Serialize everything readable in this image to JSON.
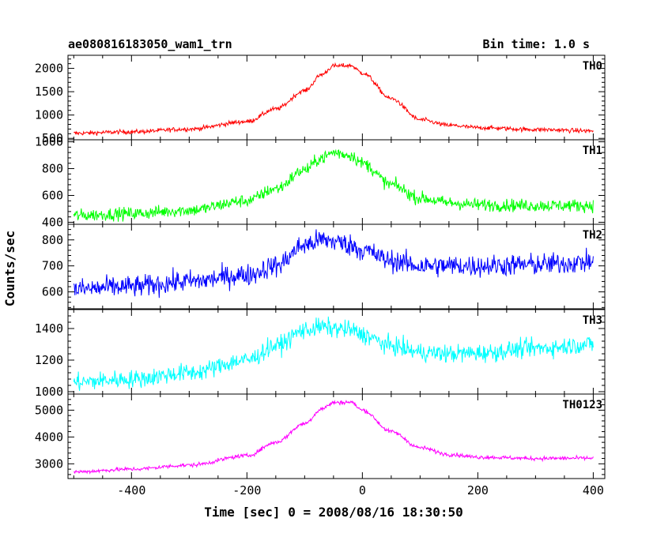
{
  "header": {
    "title": "ae080816183050_wam1_trn",
    "bin_time": "Bin time: 1.0 s"
  },
  "axes": {
    "xlabel": "Time [sec] 0 = 2008/08/16 18:30:50",
    "ylabel": "Counts/sec"
  },
  "chart_data": {
    "type": "line",
    "title": "ae080816183050_wam1_trn",
    "subtitle": "Bin time: 1.0 s",
    "xlabel": "Time [sec] 0 = 2008/08/16 18:30:50",
    "ylabel": "Counts/sec",
    "xlim": [
      -510,
      420
    ],
    "xticks": [
      -400,
      -200,
      0,
      200,
      400
    ],
    "x_step_sec": 1,
    "x_start": -500,
    "x_end": 400,
    "panels": [
      {
        "name": "TH0",
        "color": "#ff0000",
        "ylim": [
          470,
          2280
        ],
        "yticks": [
          500,
          1000,
          1500,
          2000
        ],
        "profile": {
          "x": [
            -500,
            -400,
            -300,
            -200,
            -150,
            -100,
            -70,
            -50,
            -20,
            0,
            50,
            100,
            150,
            200,
            300,
            400
          ],
          "y": [
            610,
            640,
            700,
            860,
            1130,
            1520,
            1870,
            2050,
            2060,
            1900,
            1350,
            900,
            780,
            730,
            690,
            660
          ]
        },
        "noise_amplitude": 45
      },
      {
        "name": "TH1",
        "color": "#00ff00",
        "ylim": [
          385,
          1015
        ],
        "yticks": [
          400,
          600,
          800,
          1000
        ],
        "profile": {
          "x": [
            -500,
            -400,
            -300,
            -200,
            -150,
            -100,
            -70,
            -50,
            -20,
            0,
            50,
            100,
            150,
            200,
            300,
            400
          ],
          "y": [
            450,
            465,
            490,
            560,
            650,
            790,
            880,
            920,
            900,
            840,
            680,
            580,
            545,
            530,
            525,
            525
          ]
        },
        "noise_amplitude": 45
      },
      {
        "name": "TH2",
        "color": "#0000ff",
        "ylim": [
          535,
          860
        ],
        "yticks": [
          600,
          700,
          800
        ],
        "profile": {
          "x": [
            -500,
            -400,
            -300,
            -200,
            -150,
            -100,
            -70,
            -50,
            -20,
            0,
            50,
            100,
            150,
            200,
            300,
            400
          ],
          "y": [
            610,
            620,
            640,
            665,
            700,
            780,
            800,
            795,
            780,
            760,
            720,
            700,
            700,
            700,
            705,
            715
          ]
        },
        "noise_amplitude": 40
      },
      {
        "name": "TH3",
        "color": "#00ffff",
        "ylim": [
          985,
          1520
        ],
        "yticks": [
          1000,
          1200,
          1400
        ],
        "profile": {
          "x": [
            -500,
            -400,
            -300,
            -200,
            -150,
            -100,
            -70,
            -50,
            -20,
            0,
            50,
            100,
            150,
            200,
            300,
            400
          ],
          "y": [
            1060,
            1080,
            1120,
            1200,
            1290,
            1390,
            1410,
            1400,
            1390,
            1360,
            1290,
            1250,
            1240,
            1245,
            1275,
            1300
          ]
        },
        "noise_amplitude": 55
      },
      {
        "name": "TH0123",
        "color": "#ff00ff",
        "ylim": [
          2450,
          5600
        ],
        "yticks": [
          3000,
          4000,
          5000
        ],
        "profile": {
          "x": [
            -500,
            -400,
            -300,
            -200,
            -150,
            -100,
            -70,
            -50,
            -20,
            0,
            50,
            100,
            150,
            200,
            300,
            400
          ],
          "y": [
            2700,
            2800,
            2950,
            3300,
            3800,
            4500,
            5050,
            5280,
            5300,
            5000,
            4200,
            3600,
            3350,
            3250,
            3200,
            3210
          ]
        },
        "noise_amplitude": 70
      }
    ]
  }
}
